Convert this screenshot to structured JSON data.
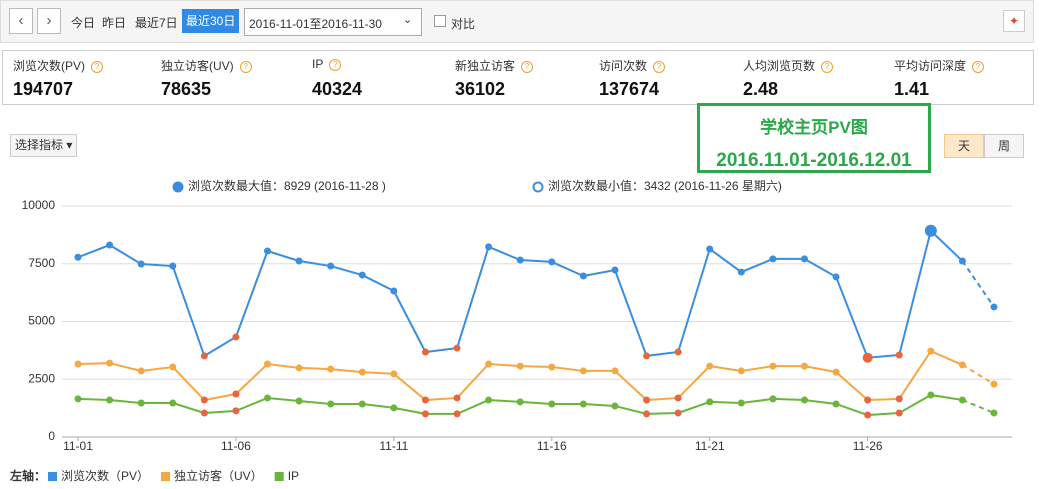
{
  "toolbar": {
    "quick_ranges": [
      "今日",
      "昨日",
      "最近7日"
    ],
    "active_range": "最近30日",
    "date_range": "2016-11-01至2016-11-30",
    "compare": "对比"
  },
  "stats": [
    {
      "label": "浏览次数(PV)",
      "value": 194707
    },
    {
      "label": "独立访客(UV)",
      "value": 78635
    },
    {
      "label": "IP",
      "value": 40324
    },
    {
      "label": "新独立访客",
      "value": 36102
    },
    {
      "label": "访问次数",
      "value": 137674
    },
    {
      "label": "人均浏览页数",
      "value": 2.48
    },
    {
      "label": "平均访问深度",
      "value": 1.41
    }
  ],
  "annotation": {
    "title": "学校主页PV图",
    "range": "2016.11.01-2016.12.01"
  },
  "controls": {
    "metric_select": "选择指标",
    "granularity": [
      "天",
      "周"
    ],
    "active_granularity": 0
  },
  "chart_data": {
    "type": "line",
    "max_note": "浏览次数最大值：8929 (2016-11-28 )",
    "min_note": "浏览次数最小值：3432 (2016-11-26 星期六)",
    "axis_label": "左轴：",
    "categories": [
      "11-01",
      null,
      null,
      null,
      null,
      "11-06",
      null,
      null,
      null,
      null,
      "11-11",
      null,
      null,
      null,
      null,
      "11-16",
      null,
      null,
      null,
      null,
      "11-21",
      null,
      null,
      null,
      null,
      "11-26",
      null,
      null,
      null,
      null
    ],
    "series": [
      {
        "name": "浏览次数（PV）",
        "color": "#3a8ee0",
        "values": [
          7780,
          8310,
          7490,
          7400,
          3510,
          4330,
          8050,
          7620,
          7400,
          7010,
          6320,
          3680,
          3850,
          8230,
          7660,
          7580,
          6970,
          7230,
          3510,
          3680,
          8140,
          7140,
          7710,
          7710,
          6930,
          3432,
          3550,
          8929,
          7620,
          5630
        ]
      },
      {
        "name": "独立访客（UV）",
        "color": "#f5a742",
        "values": [
          3160,
          3200,
          2860,
          3030,
          1600,
          1860,
          3160,
          2990,
          2940,
          2810,
          2730,
          1600,
          1690,
          3160,
          3070,
          3030,
          2860,
          2860,
          1600,
          1690,
          3070,
          2860,
          3070,
          3070,
          2810,
          1600,
          1650,
          3720,
          3120,
          2290
        ]
      },
      {
        "name": "IP",
        "color": "#6ab53c",
        "values": [
          1650,
          1600,
          1470,
          1470,
          1040,
          1130,
          1690,
          1560,
          1430,
          1430,
          1260,
          1000,
          1000,
          1600,
          1520,
          1430,
          1430,
          1340,
          1000,
          1040,
          1520,
          1470,
          1650,
          1600,
          1430,
          950,
          1040,
          1820,
          1600,
          1040
        ]
      }
    ],
    "highlight_points": [
      4,
      5,
      11,
      12,
      18,
      19,
      25,
      26
    ],
    "highlight_color": "#e8663e",
    "max_point": 27,
    "min_point": 25,
    "ylim": [
      0,
      10000
    ],
    "yticks": [
      0,
      2500,
      5000,
      7500,
      10000
    ],
    "grid": true
  }
}
